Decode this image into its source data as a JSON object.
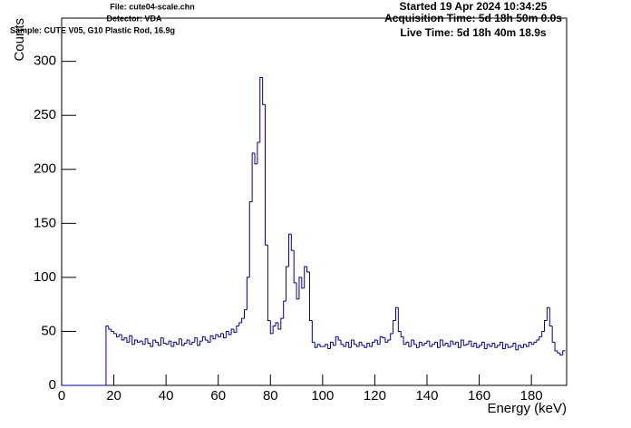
{
  "header": {
    "file": "File: cute04-scale.chn",
    "detector": "Detector: VDA",
    "sample": "Sample: CUTE V05, G10 Plastic Rod, 16.9g",
    "started": "Started 19 Apr 2024 10:34:25",
    "acquisition": "Acquisition Time: 5d 18h 50m 0.0s",
    "live": "Live Time: 5d 18h 40m 18.9s"
  },
  "chart_data": {
    "type": "histogram",
    "x_label": "Energy (keV)",
    "y_label": "Counts",
    "color": "#000099",
    "xlim": [
      0,
      193.5
    ],
    "ylim": [
      0,
      340
    ],
    "xticks": [
      0,
      20,
      40,
      60,
      80,
      100,
      120,
      140,
      160,
      180
    ],
    "yticks": [
      0,
      50,
      100,
      150,
      200,
      250,
      300
    ],
    "bins": [
      0,
      1,
      2,
      3,
      4,
      5,
      6,
      7,
      8,
      9,
      10,
      11,
      12,
      13,
      14,
      15,
      16,
      17,
      18,
      19,
      20,
      21,
      22,
      23,
      24,
      25,
      26,
      27,
      28,
      29,
      30,
      31,
      32,
      33,
      34,
      35,
      36,
      37,
      38,
      39,
      40,
      41,
      42,
      43,
      44,
      45,
      46,
      47,
      48,
      49,
      50,
      51,
      52,
      53,
      54,
      55,
      56,
      57,
      58,
      59,
      60,
      61,
      62,
      63,
      64,
      65,
      66,
      67,
      68,
      69,
      70,
      71,
      72,
      73,
      74,
      75,
      76,
      77,
      78,
      79,
      80,
      81,
      82,
      83,
      84,
      85,
      86,
      87,
      88,
      89,
      90,
      91,
      92,
      93,
      94,
      95,
      96,
      97,
      98,
      99,
      100,
      101,
      102,
      103,
      104,
      105,
      106,
      107,
      108,
      109,
      110,
      111,
      112,
      113,
      114,
      115,
      116,
      117,
      118,
      119,
      120,
      121,
      122,
      123,
      124,
      125,
      126,
      127,
      128,
      129,
      130,
      131,
      132,
      133,
      134,
      135,
      136,
      137,
      138,
      139,
      140,
      141,
      142,
      143,
      144,
      145,
      146,
      147,
      148,
      149,
      150,
      151,
      152,
      153,
      154,
      155,
      156,
      157,
      158,
      159,
      160,
      161,
      162,
      163,
      164,
      165,
      166,
      167,
      168,
      169,
      170,
      171,
      172,
      173,
      174,
      175,
      176,
      177,
      178,
      179,
      180,
      181,
      182,
      183,
      184,
      185,
      186,
      187,
      188,
      189,
      190,
      191,
      192,
      193
    ],
    "values": [
      0,
      0,
      0,
      0,
      0,
      0,
      0,
      0,
      0,
      0,
      0,
      0,
      0,
      0,
      0,
      0,
      0,
      55,
      52,
      50,
      48,
      45,
      47,
      42,
      44,
      40,
      46,
      38,
      42,
      40,
      41,
      38,
      43,
      39,
      36,
      42,
      40,
      37,
      44,
      39,
      38,
      41,
      36,
      40,
      38,
      43,
      37,
      39,
      42,
      38,
      40,
      44,
      37,
      41,
      45,
      42,
      40,
      46,
      43,
      47,
      45,
      48,
      44,
      50,
      47,
      52,
      49,
      55,
      58,
      62,
      70,
      100,
      170,
      215,
      205,
      225,
      285,
      260,
      130,
      60,
      48,
      55,
      58,
      52,
      62,
      78,
      110,
      140,
      125,
      95,
      80,
      100,
      90,
      110,
      105,
      60,
      40,
      35,
      38,
      36,
      36,
      38,
      34,
      40,
      37,
      45,
      42,
      38,
      36,
      40,
      35,
      42,
      38,
      36,
      40,
      37,
      35,
      39,
      36,
      40,
      42,
      38,
      45,
      44,
      40,
      42,
      48,
      60,
      72,
      50,
      45,
      38,
      40,
      36,
      42,
      38,
      35,
      40,
      37,
      39,
      41,
      36,
      38,
      40,
      35,
      42,
      37,
      39,
      36,
      41,
      38,
      40,
      35,
      42,
      37,
      38,
      41,
      36,
      39,
      35,
      37,
      40,
      34,
      38,
      36,
      39,
      35,
      37,
      40,
      34,
      38,
      35,
      36,
      39,
      33,
      37,
      35,
      38,
      36,
      40,
      38,
      40,
      42,
      45,
      50,
      60,
      72,
      55,
      40,
      32,
      30,
      28,
      32
    ]
  }
}
